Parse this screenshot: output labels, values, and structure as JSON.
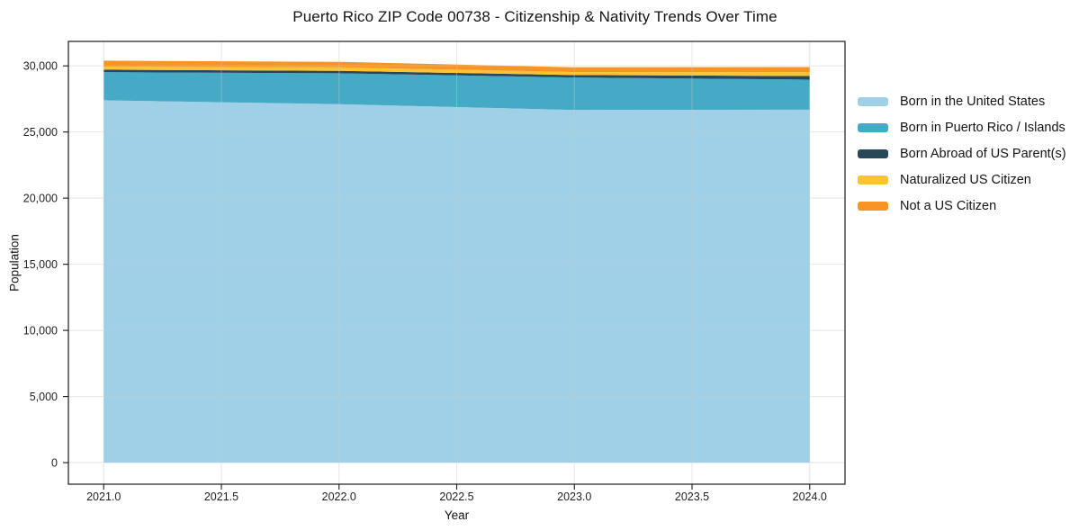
{
  "chart": {
    "title": "Puerto Rico ZIP Code 00738 - Citizenship & Nativity Trends Over Time",
    "xlabel": "Year",
    "ylabel": "Population"
  },
  "chart_data": {
    "type": "area",
    "stacked": true,
    "title": "Puerto Rico ZIP Code 00738 - Citizenship & Nativity Trends Over Time",
    "xlabel": "Year",
    "ylabel": "Population",
    "x": [
      2021,
      2022,
      2023,
      2024
    ],
    "series": [
      {
        "name": "Born in the United States",
        "color": "#a0d0e8",
        "values": [
          27400,
          27100,
          26670,
          26690
        ]
      },
      {
        "name": "Born in Puerto Rico / Islands",
        "color": "#44aac5",
        "values": [
          2125,
          2340,
          2450,
          2270
        ]
      },
      {
        "name": "Born Abroad of US Parent(s)",
        "color": "#28485a",
        "values": [
          185,
          185,
          185,
          270
        ]
      },
      {
        "name": "Naturalized US Citizen",
        "color": "#fcc430",
        "values": [
          225,
          270,
          225,
          300
        ]
      },
      {
        "name": "Not a US Citizen",
        "color": "#f79423",
        "values": [
          460,
          410,
          360,
          380
        ]
      }
    ],
    "xlim": [
      2020.85,
      2024.15
    ],
    "ylim": [
      -1630,
      31850
    ],
    "xticks": {
      "values": [
        2021.0,
        2021.5,
        2022.0,
        2022.5,
        2023.0,
        2023.5,
        2024.0
      ],
      "labels": [
        "2021.0",
        "2021.5",
        "2022.0",
        "2022.5",
        "2023.0",
        "2023.5",
        "2024.0"
      ]
    },
    "yticks": {
      "values": [
        0,
        5000,
        10000,
        15000,
        20000,
        25000,
        30000
      ],
      "labels": [
        "0",
        "5,000",
        "10,000",
        "15,000",
        "20,000",
        "25,000",
        "30,000"
      ]
    },
    "grid": true,
    "legend_position": "right",
    "colors": {
      "frame": "#1a1a1a",
      "grid": "#c8c8c8",
      "tick_text": "#1f1f1f"
    }
  }
}
